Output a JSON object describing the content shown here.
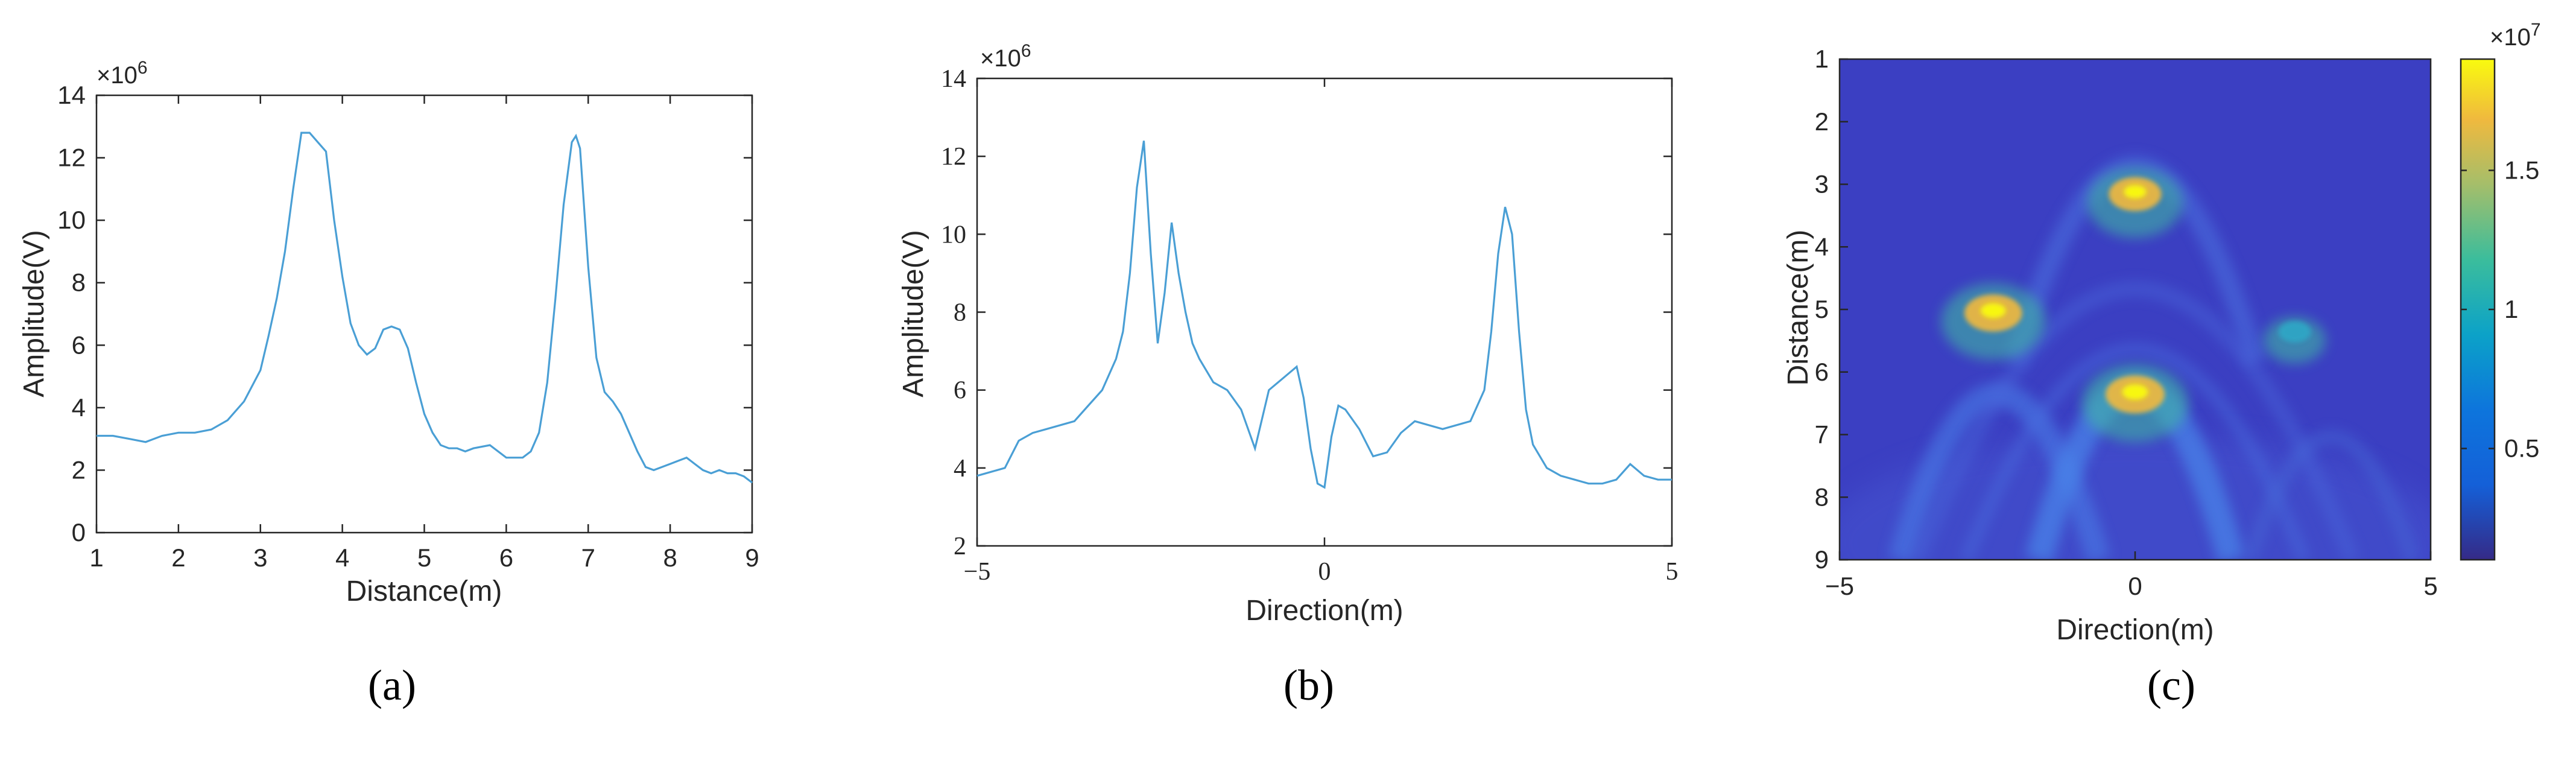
{
  "chart_data": [
    {
      "type": "line",
      "panel_label": "(a)",
      "xlabel": "Distance(m)",
      "ylabel": "Amplitude(V)",
      "exponent": "×10",
      "exponent_power": "6",
      "xlim": [
        1,
        9
      ],
      "ylim": [
        0,
        14
      ],
      "x_ticks": [
        1,
        2,
        3,
        4,
        5,
        6,
        7,
        8,
        9
      ],
      "y_ticks": [
        0,
        2,
        4,
        6,
        8,
        10,
        12,
        14
      ],
      "line_color": "#4a9fd5",
      "x": [
        1.0,
        1.2,
        1.4,
        1.6,
        1.8,
        2.0,
        2.2,
        2.4,
        2.6,
        2.8,
        3.0,
        3.1,
        3.2,
        3.3,
        3.4,
        3.5,
        3.6,
        3.7,
        3.8,
        3.9,
        4.0,
        4.1,
        4.2,
        4.3,
        4.4,
        4.5,
        4.6,
        4.7,
        4.8,
        4.9,
        5.0,
        5.1,
        5.2,
        5.3,
        5.4,
        5.5,
        5.6,
        5.8,
        6.0,
        6.1,
        6.2,
        6.3,
        6.4,
        6.5,
        6.6,
        6.7,
        6.8,
        6.85,
        6.9,
        7.0,
        7.1,
        7.2,
        7.3,
        7.4,
        7.5,
        7.6,
        7.7,
        7.8,
        7.9,
        8.0,
        8.1,
        8.2,
        8.3,
        8.4,
        8.5,
        8.6,
        8.7,
        8.8,
        8.9,
        9.0
      ],
      "values": [
        3.1,
        3.1,
        3.0,
        2.9,
        3.1,
        3.2,
        3.2,
        3.3,
        3.6,
        4.2,
        5.2,
        6.3,
        7.5,
        9.0,
        11.0,
        12.8,
        12.8,
        12.5,
        12.2,
        10.0,
        8.2,
        6.7,
        6.0,
        5.7,
        5.9,
        6.5,
        6.6,
        6.5,
        5.9,
        4.8,
        3.8,
        3.2,
        2.8,
        2.7,
        2.7,
        2.6,
        2.7,
        2.8,
        2.4,
        2.4,
        2.4,
        2.6,
        3.2,
        4.8,
        7.5,
        10.5,
        12.5,
        12.7,
        12.3,
        8.5,
        5.6,
        4.5,
        4.2,
        3.8,
        3.2,
        2.6,
        2.1,
        2.0,
        2.1,
        2.2,
        2.3,
        2.4,
        2.2,
        2.0,
        1.9,
        2.0,
        1.9,
        1.9,
        1.8,
        1.6
      ]
    },
    {
      "type": "line",
      "panel_label": "(b)",
      "xlabel": "Direction(m)",
      "ylabel": "Amplitude(V)",
      "exponent": "×10",
      "exponent_power": "6",
      "xlim": [
        -5,
        5
      ],
      "ylim": [
        2,
        14
      ],
      "x_ticks": [
        -5,
        0,
        5
      ],
      "x_tick_labels": [
        "−5",
        "0",
        "5"
      ],
      "y_ticks": [
        2,
        4,
        6,
        8,
        10,
        12,
        14
      ],
      "line_color": "#4a9fd5",
      "x": [
        -5.0,
        -4.8,
        -4.6,
        -4.4,
        -4.2,
        -4.0,
        -3.8,
        -3.6,
        -3.4,
        -3.2,
        -3.0,
        -2.9,
        -2.8,
        -2.7,
        -2.6,
        -2.5,
        -2.4,
        -2.3,
        -2.2,
        -2.1,
        -2.0,
        -1.9,
        -1.8,
        -1.6,
        -1.4,
        -1.2,
        -1.0,
        -0.8,
        -0.6,
        -0.4,
        -0.3,
        -0.2,
        -0.1,
        0.0,
        0.1,
        0.2,
        0.3,
        0.5,
        0.7,
        0.9,
        1.1,
        1.3,
        1.5,
        1.7,
        1.9,
        2.1,
        2.3,
        2.4,
        2.5,
        2.6,
        2.7,
        2.8,
        2.9,
        3.0,
        3.2,
        3.4,
        3.6,
        3.8,
        4.0,
        4.2,
        4.4,
        4.6,
        4.8,
        5.0
      ],
      "values": [
        3.8,
        3.9,
        4.0,
        4.7,
        4.9,
        5.0,
        5.1,
        5.2,
        5.6,
        6.0,
        6.8,
        7.5,
        9.0,
        11.2,
        12.4,
        9.5,
        7.2,
        8.5,
        10.3,
        9.0,
        8.0,
        7.2,
        6.8,
        6.2,
        6.0,
        5.5,
        4.5,
        6.0,
        6.3,
        6.6,
        5.8,
        4.5,
        3.6,
        3.5,
        4.8,
        5.6,
        5.5,
        5.0,
        4.3,
        4.4,
        4.9,
        5.2,
        5.1,
        5.0,
        5.1,
        5.2,
        6.0,
        7.5,
        9.5,
        10.7,
        10.0,
        7.5,
        5.5,
        4.6,
        4.0,
        3.8,
        3.7,
        3.6,
        3.6,
        3.7,
        4.1,
        3.8,
        3.7,
        3.7
      ]
    },
    {
      "type": "heatmap",
      "panel_label": "(c)",
      "xlabel": "Direction(m)",
      "ylabel": "Distance(m)",
      "xlim": [
        -5,
        5
      ],
      "ylim": [
        1,
        9
      ],
      "x_ticks": [
        -5,
        0,
        5
      ],
      "x_tick_labels": [
        "−5",
        "0",
        "5"
      ],
      "y_ticks": [
        1,
        2,
        3,
        4,
        5,
        6,
        7,
        8,
        9
      ],
      "y_reversed": true,
      "colorbar_exponent": "×10",
      "colorbar_exponent_power": "7",
      "colorbar_ticks": [
        0.5,
        1,
        1.5
      ],
      "colorbar_range": [
        0.1,
        1.9
      ],
      "colormap": "parula",
      "hotspots": [
        {
          "x": -2.4,
          "y": 5.0,
          "value": 1.9
        },
        {
          "x": 0.0,
          "y": 3.1,
          "value": 1.7
        },
        {
          "x": 0.0,
          "y": 6.3,
          "value": 1.95
        },
        {
          "x": 2.7,
          "y": 5.3,
          "value": 0.9
        }
      ]
    }
  ]
}
